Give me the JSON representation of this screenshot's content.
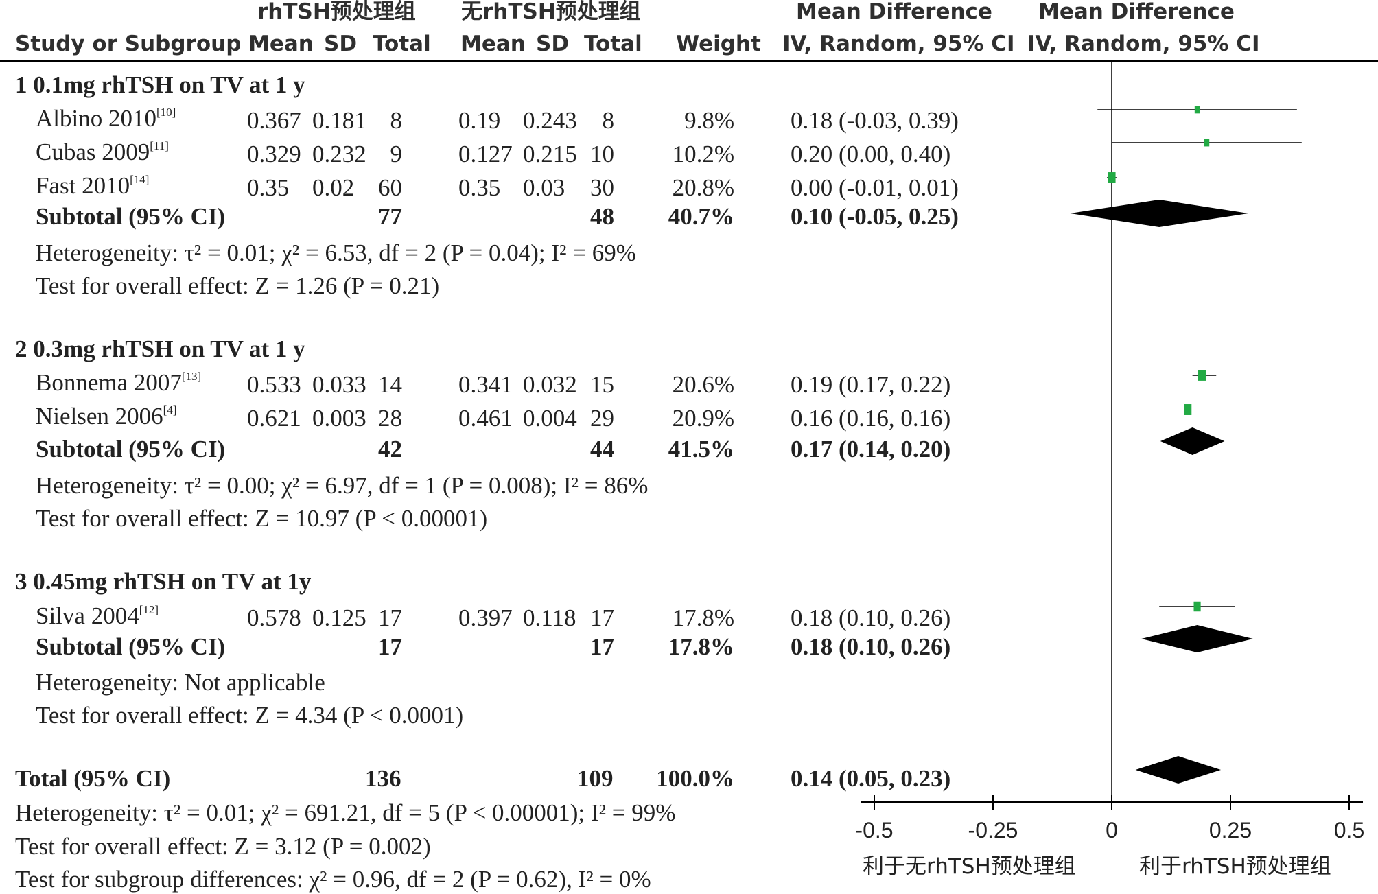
{
  "header": {
    "group1": "rhTSH预处理组",
    "group2": "无rhTSH预处理组",
    "md_title": "Mean Difference",
    "md_sub": "IV, Random, 95% CI",
    "study_col": "Study or Subgroup",
    "mean": "Mean",
    "sd": "SD",
    "total": "Total",
    "weight": "Weight"
  },
  "subgroups": [
    {
      "title": "1  0.1mg rhTSH on TV at 1 y",
      "studies": [
        {
          "name": "Albino 2010",
          "ref": "[10]",
          "m1": "0.367",
          "sd1": "0.181",
          "n1": "8",
          "m2": "0.19",
          "sd2": "0.243",
          "n2": "8",
          "weight": "9.8%",
          "ci": "0.18 (-0.03, 0.39)"
        },
        {
          "name": "Cubas 2009",
          "ref": "[11]",
          "m1": "0.329",
          "sd1": "0.232",
          "n1": "9",
          "m2": "0.127",
          "sd2": "0.215",
          "n2": "10",
          "weight": "10.2%",
          "ci": "0.20 (0.00, 0.40)"
        },
        {
          "name": "Fast 2010",
          "ref": "[14]",
          "m1": "0.35",
          "sd1": "0.02",
          "n1": "60",
          "m2": "0.35",
          "sd2": "0.03",
          "n2": "30",
          "weight": "20.8%",
          "ci": "0.00 (-0.01, 0.01)"
        }
      ],
      "subtotal": {
        "label": "Subtotal (95% CI)",
        "n1": "77",
        "n2": "48",
        "weight": "40.7%",
        "ci": "0.10 (-0.05, 0.25)"
      },
      "heterogeneity": "Heterogeneity: τ² = 0.01; χ² = 6.53, df = 2 (P = 0.04); I² = 69%",
      "overall": "Test for overall effect: Z = 1.26 (P = 0.21)"
    },
    {
      "title": "2  0.3mg rhTSH on TV at 1 y",
      "studies": [
        {
          "name": "Bonnema 2007",
          "ref": "[13]",
          "m1": "0.533",
          "sd1": "0.033",
          "n1": "14",
          "m2": "0.341",
          "sd2": "0.032",
          "n2": "15",
          "weight": "20.6%",
          "ci": "0.19 (0.17, 0.22)"
        },
        {
          "name": "Nielsen 2006",
          "ref": "[4]",
          "m1": "0.621",
          "sd1": "0.003",
          "n1": "28",
          "m2": "0.461",
          "sd2": "0.004",
          "n2": "29",
          "weight": "20.9%",
          "ci": "0.16 (0.16, 0.16)"
        }
      ],
      "subtotal": {
        "label": "Subtotal (95% CI)",
        "n1": "42",
        "n2": "44",
        "weight": "41.5%",
        "ci": "0.17 (0.14, 0.20)"
      },
      "heterogeneity": "Heterogeneity: τ² = 0.00; χ² = 6.97, df = 1 (P = 0.008); I² = 86%",
      "overall": "Test for overall effect: Z = 10.97 (P < 0.00001)"
    },
    {
      "title": "3  0.45mg rhTSH on TV at 1y",
      "studies": [
        {
          "name": "Silva 2004",
          "ref": "[12]",
          "m1": "0.578",
          "sd1": "0.125",
          "n1": "17",
          "m2": "0.397",
          "sd2": "0.118",
          "n2": "17",
          "weight": "17.8%",
          "ci": "0.18 (0.10, 0.26)"
        }
      ],
      "subtotal": {
        "label": "Subtotal (95% CI)",
        "n1": "17",
        "n2": "17",
        "weight": "17.8%",
        "ci": "0.18 (0.10, 0.26)"
      },
      "heterogeneity": "Heterogeneity: Not applicable",
      "overall": "Test for overall effect: Z = 4.34 (P < 0.0001)"
    }
  ],
  "total": {
    "label": "Total (95% CI)",
    "n1": "136",
    "n2": "109",
    "weight": "100.0%",
    "ci": "0.14 (0.05, 0.23)",
    "heterogeneity": "Heterogeneity: τ² = 0.01; χ² = 691.21, df = 5 (P < 0.00001); I² = 99%",
    "overall": "Test for overall effect: Z = 3.12 (P = 0.002)",
    "subgroup_diff": "Test for subgroup differences: χ² = 0.96, df = 2 (P = 0.62), I² = 0%"
  },
  "axis": {
    "ticks": [
      "-0.5",
      "-0.25",
      "0",
      "0.25",
      "0.5"
    ],
    "favours_left": "利于无rhTSH预处理组",
    "favours_right": "利于rhTSH预处理组"
  },
  "colors": {
    "study_marker": "#22aa44",
    "diamond": "#000000",
    "line": "#000000"
  },
  "chart_data": {
    "type": "forest",
    "xlim": [
      -0.5,
      0.5
    ],
    "xticks": [
      -0.5,
      -0.25,
      0,
      0.25,
      0.5
    ],
    "studies": [
      {
        "name": "Albino 2010",
        "md": 0.18,
        "lo": -0.03,
        "hi": 0.39,
        "weight": 9.8
      },
      {
        "name": "Cubas 2009",
        "md": 0.2,
        "lo": 0.0,
        "hi": 0.4,
        "weight": 10.2
      },
      {
        "name": "Fast 2010",
        "md": 0.0,
        "lo": -0.01,
        "hi": 0.01,
        "weight": 20.8
      },
      {
        "name": "Bonnema 2007",
        "md": 0.19,
        "lo": 0.17,
        "hi": 0.22,
        "weight": 20.6
      },
      {
        "name": "Nielsen 2006",
        "md": 0.16,
        "lo": 0.16,
        "hi": 0.16,
        "weight": 20.9
      },
      {
        "name": "Silva 2004",
        "md": 0.18,
        "lo": 0.1,
        "hi": 0.26,
        "weight": 17.8
      }
    ],
    "subtotals": [
      {
        "name": "Subtotal 1",
        "md": 0.1,
        "lo": -0.05,
        "hi": 0.25
      },
      {
        "name": "Subtotal 2",
        "md": 0.17,
        "lo": 0.14,
        "hi": 0.2
      },
      {
        "name": "Subtotal 3",
        "md": 0.18,
        "lo": 0.1,
        "hi": 0.26
      }
    ],
    "total": {
      "name": "Total",
      "md": 0.14,
      "lo": 0.05,
      "hi": 0.23
    }
  }
}
